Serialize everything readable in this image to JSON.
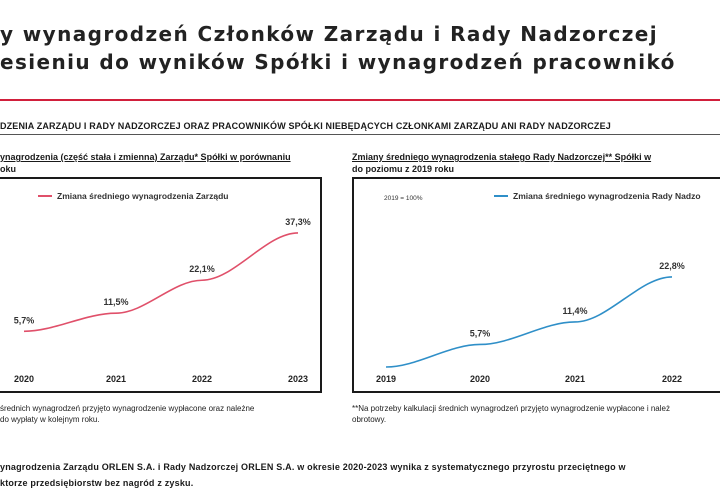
{
  "page": {
    "title_line1": "y wynagrodzeń Członków Zarządu i Rady Nadzorczej",
    "title_line2": "esieniu do wyników Spółki i wynagrodzeń pracownikó",
    "accent_color": "#d11f3b",
    "section_heading": "DZENIA ZARZĄDU I RADY NADZORCZEJ ORAZ PRACOWNIKÓW SPÓŁKI NIEBĘDĄCYCH CZŁONKAMI ZARZĄDU ANI RADY NADZORCZEJ",
    "left_subtitle_line1": "ynagrodzenia (część stała i zmienna) Zarządu* Spółki w porównaniu",
    "left_subtitle_line2": "oku",
    "right_subtitle_line1": "Zmiany średniego wynagrodzenia stałego Rady Nadzorczej** Spółki w",
    "right_subtitle_line2": "do poziomu z 2019 roku",
    "left_footnote_line1": "średnich wynagrodzeń przyjęto wynagrodzenie wypłacone oraz należne",
    "left_footnote_line2": "do wypłaty w kolejnym roku.",
    "right_footnote_line1": "**Na potrzeby kalkulacji średnich wynagrodzeń przyjęto wynagrodzenie wypłacone i należ",
    "right_footnote_line2": "obrotowy.",
    "conclusion_line1": "ynagrodzenia Zarządu ORLEN S.A. i Rady Nadzorczej ORLEN S.A. w okresie 2020-2023 wynika z systematycznego przyrostu przeciętnego w",
    "conclusion_line2": "ktorze przedsiębiorstw bez nagród z zysku."
  },
  "chart_data": [
    {
      "type": "line",
      "x": [
        "2020",
        "2021",
        "2022",
        "2023"
      ],
      "series": [
        {
          "name": "Zmiana średniego wynagrodzenia Zarządu",
          "values": [
            5.7,
            11.5,
            22.1,
            37.3
          ],
          "color": "#e0506a"
        }
      ],
      "data_labels": [
        "5,7%",
        "11,5%",
        "22,1%",
        "37,3%"
      ],
      "ylim": [
        0,
        45
      ],
      "grid": false,
      "legend": "top"
    },
    {
      "type": "line",
      "x": [
        "2019",
        "2020",
        "2021",
        "2022"
      ],
      "series": [
        {
          "name": "Zmiana średniego wynagrodzenia Rady Nadzo",
          "values": [
            0,
            5.7,
            11.4,
            22.8
          ],
          "color": "#2f8fc8"
        }
      ],
      "data_labels": [
        "",
        "5,7%",
        "11,4%",
        "22,8%"
      ],
      "annotation": "2019 = 100%",
      "ylim": [
        0,
        40
      ],
      "grid": false,
      "legend": "top"
    }
  ]
}
